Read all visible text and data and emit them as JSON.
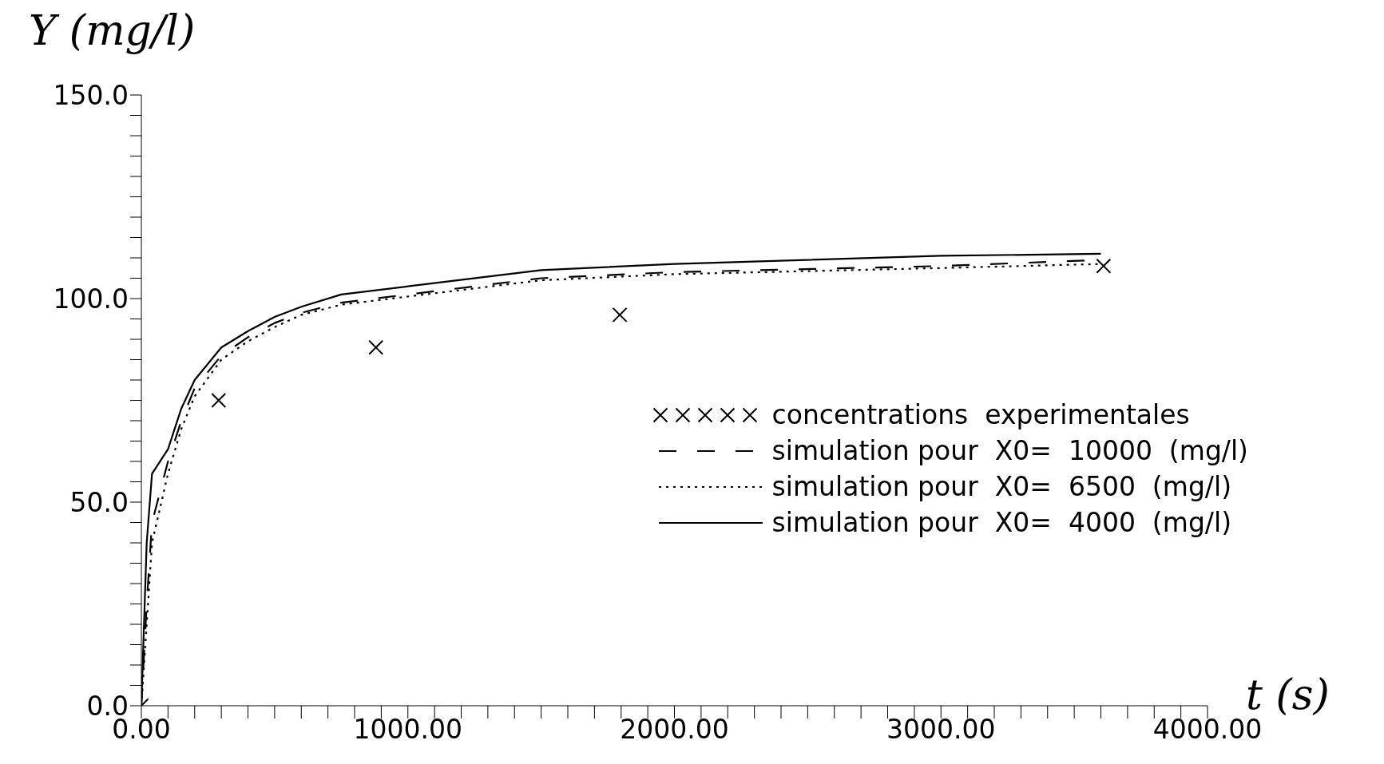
{
  "chart_data": {
    "type": "line",
    "ylabel": "Y (mg/l)",
    "xlabel": "t (s)",
    "xlim": [
      0,
      4000
    ],
    "ylim": [
      0,
      150
    ],
    "xticks": [
      {
        "value": 0,
        "label": "0.00"
      },
      {
        "value": 100,
        "label": null
      },
      {
        "value": 200,
        "label": null
      },
      {
        "value": 300,
        "label": null
      },
      {
        "value": 400,
        "label": null
      },
      {
        "value": 500,
        "label": null
      },
      {
        "value": 600,
        "label": null
      },
      {
        "value": 700,
        "label": null
      },
      {
        "value": 800,
        "label": null
      },
      {
        "value": 900,
        "label": null
      },
      {
        "value": 1000,
        "label": "1000.00"
      },
      {
        "value": 1100,
        "label": null
      },
      {
        "value": 1200,
        "label": null
      },
      {
        "value": 1300,
        "label": null
      },
      {
        "value": 1400,
        "label": null
      },
      {
        "value": 1500,
        "label": null
      },
      {
        "value": 1600,
        "label": null
      },
      {
        "value": 1700,
        "label": null
      },
      {
        "value": 1800,
        "label": null
      },
      {
        "value": 1900,
        "label": null
      },
      {
        "value": 2000,
        "label": "2000.00"
      },
      {
        "value": 2100,
        "label": null
      },
      {
        "value": 2200,
        "label": null
      },
      {
        "value": 2300,
        "label": null
      },
      {
        "value": 2400,
        "label": null
      },
      {
        "value": 2500,
        "label": null
      },
      {
        "value": 2600,
        "label": null
      },
      {
        "value": 2700,
        "label": null
      },
      {
        "value": 2800,
        "label": null
      },
      {
        "value": 2900,
        "label": null
      },
      {
        "value": 3000,
        "label": "3000.00"
      },
      {
        "value": 3100,
        "label": null
      },
      {
        "value": 3200,
        "label": null
      },
      {
        "value": 3300,
        "label": null
      },
      {
        "value": 3400,
        "label": null
      },
      {
        "value": 3500,
        "label": null
      },
      {
        "value": 3600,
        "label": null
      },
      {
        "value": 3700,
        "label": null
      },
      {
        "value": 3800,
        "label": null
      },
      {
        "value": 3900,
        "label": null
      },
      {
        "value": 4000,
        "label": "4000.00"
      }
    ],
    "yticks": [
      {
        "value": 0,
        "label": "0.0"
      },
      {
        "value": 5,
        "label": null
      },
      {
        "value": 10,
        "label": null
      },
      {
        "value": 15,
        "label": null
      },
      {
        "value": 20,
        "label": null
      },
      {
        "value": 25,
        "label": null
      },
      {
        "value": 30,
        "label": null
      },
      {
        "value": 35,
        "label": null
      },
      {
        "value": 40,
        "label": null
      },
      {
        "value": 45,
        "label": null
      },
      {
        "value": 50,
        "label": "50.0"
      },
      {
        "value": 55,
        "label": null
      },
      {
        "value": 60,
        "label": null
      },
      {
        "value": 65,
        "label": null
      },
      {
        "value": 70,
        "label": null
      },
      {
        "value": 75,
        "label": null
      },
      {
        "value": 80,
        "label": null
      },
      {
        "value": 85,
        "label": null
      },
      {
        "value": 90,
        "label": null
      },
      {
        "value": 95,
        "label": null
      },
      {
        "value": 100,
        "label": "100.0"
      },
      {
        "value": 105,
        "label": null
      },
      {
        "value": 110,
        "label": null
      },
      {
        "value": 115,
        "label": null
      },
      {
        "value": 120,
        "label": null
      },
      {
        "value": 125,
        "label": null
      },
      {
        "value": 130,
        "label": null
      },
      {
        "value": 135,
        "label": null
      },
      {
        "value": 140,
        "label": null
      },
      {
        "value": 145,
        "label": null
      },
      {
        "value": 150,
        "label": "150.0"
      }
    ],
    "legend": "bottom right",
    "grid": false,
    "series": [
      {
        "name": "concentrations  experimentales",
        "type": "scatter",
        "marker": "cross",
        "color": "#000000",
        "x": [
          0,
          290,
          880,
          1795,
          3610
        ],
        "values": [
          0,
          75,
          88,
          96,
          108
        ]
      },
      {
        "name": "simulation pour  X0=  10000  (mg/l)",
        "line_style": "dashed",
        "color": "#000000",
        "x": [
          0,
          20,
          40,
          100,
          150,
          200,
          300,
          400,
          500,
          600,
          750,
          1000,
          1500,
          2000,
          3000,
          3600
        ],
        "values": [
          0,
          25,
          45,
          60,
          70,
          78,
          86,
          90.5,
          94,
          96.5,
          99,
          101,
          105,
          106.5,
          108,
          109.5
        ]
      },
      {
        "name": "simulation pour  X0=  6500  (mg/l)",
        "line_style": "dotted",
        "color": "#000000",
        "x": [
          0,
          20,
          40,
          100,
          150,
          200,
          300,
          400,
          500,
          600,
          750,
          1000,
          1500,
          2000,
          3000,
          3600
        ],
        "values": [
          0,
          20,
          40,
          57,
          68,
          76,
          85,
          89.5,
          93,
          96,
          98.5,
          100.5,
          104.5,
          106,
          107.5,
          108.5
        ]
      },
      {
        "name": "simulation pour  X0=  4000  (mg/l)",
        "line_style": "solid",
        "color": "#000000",
        "x": [
          0,
          20,
          40,
          100,
          150,
          200,
          300,
          400,
          500,
          600,
          750,
          1000,
          1500,
          2000,
          3000,
          3600
        ],
        "values": [
          0,
          40,
          57,
          63,
          73,
          80,
          88,
          92,
          95.5,
          98,
          101,
          103,
          107,
          108.5,
          110.5,
          111
        ]
      }
    ]
  }
}
